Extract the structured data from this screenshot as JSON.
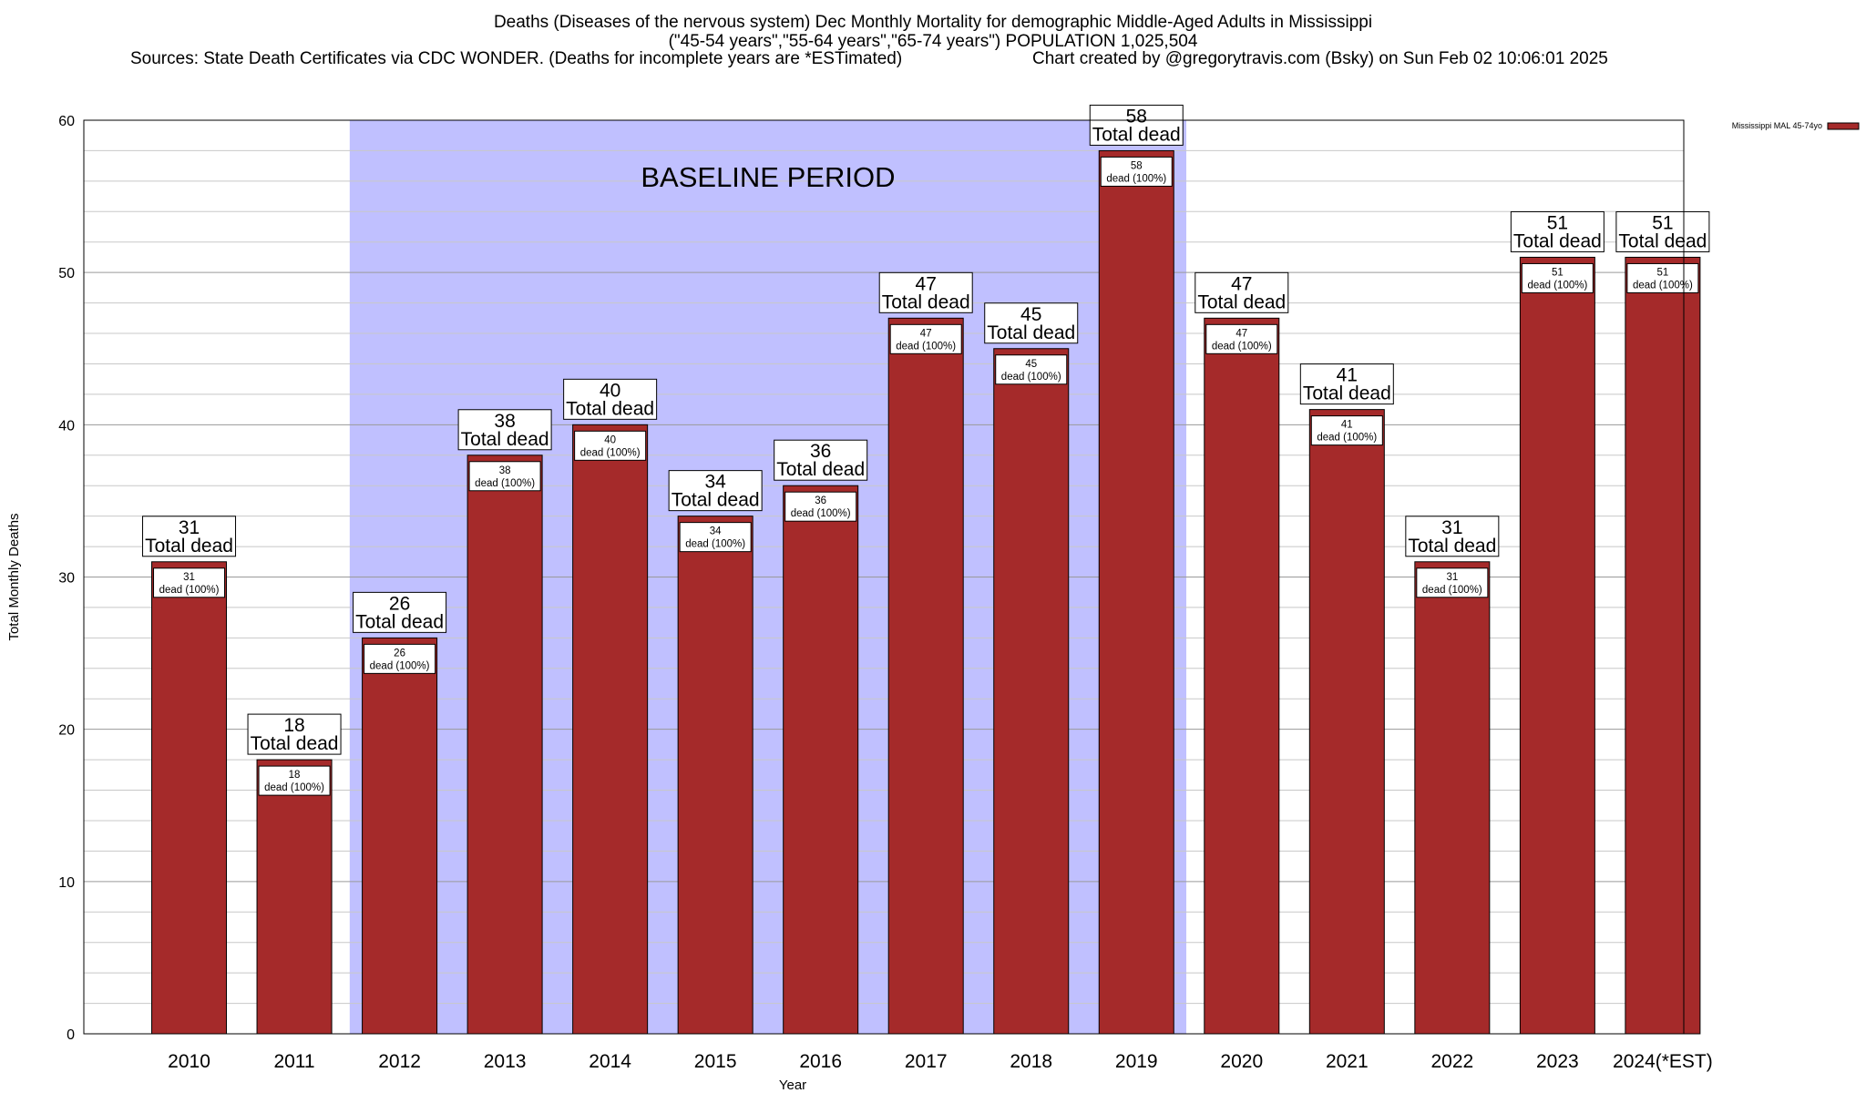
{
  "title": {
    "line1": "Deaths (Diseases of the nervous system) Dec Monthly Mortality for demographic Middle-Aged Adults in Mississippi",
    "line2": "(\"45-54 years\",\"55-64 years\",\"65-74 years\") POPULATION 1,025,504",
    "sources": "Sources: State Death Certificates via CDC WONDER. (Deaths for incomplete years are *ESTimated)",
    "credit": "Chart created by @gregorytravis.com (Bsky) on Sun Feb 02 10:06:01 2025"
  },
  "chart_data": {
    "type": "bar",
    "xlabel": "Year",
    "ylabel": "Total Monthly Deaths",
    "ylim": [
      0,
      60
    ],
    "yticks": [
      0,
      10,
      20,
      30,
      40,
      50,
      60
    ],
    "grid": true,
    "legend": {
      "position": "top-right",
      "entries": [
        "Mississippi MAL 45-74yo"
      ]
    },
    "categories": [
      "2010",
      "2011",
      "2012",
      "2013",
      "2014",
      "2015",
      "2016",
      "2017",
      "2018",
      "2019",
      "2020",
      "2021",
      "2022",
      "2023",
      "2024(*EST)"
    ],
    "series": [
      {
        "name": "Mississippi MAL 45-74yo",
        "color": "#a52a2a",
        "values": [
          31,
          18,
          26,
          38,
          40,
          34,
          36,
          47,
          45,
          58,
          47,
          41,
          31,
          51,
          51
        ]
      }
    ],
    "bar_label_line2": "Total dead",
    "inner_label_suffix": "dead (100%)",
    "shaded_region": {
      "label": "BASELINE PERIOD",
      "from": "2012",
      "to": "2019",
      "color": "#c0c0ff"
    }
  }
}
